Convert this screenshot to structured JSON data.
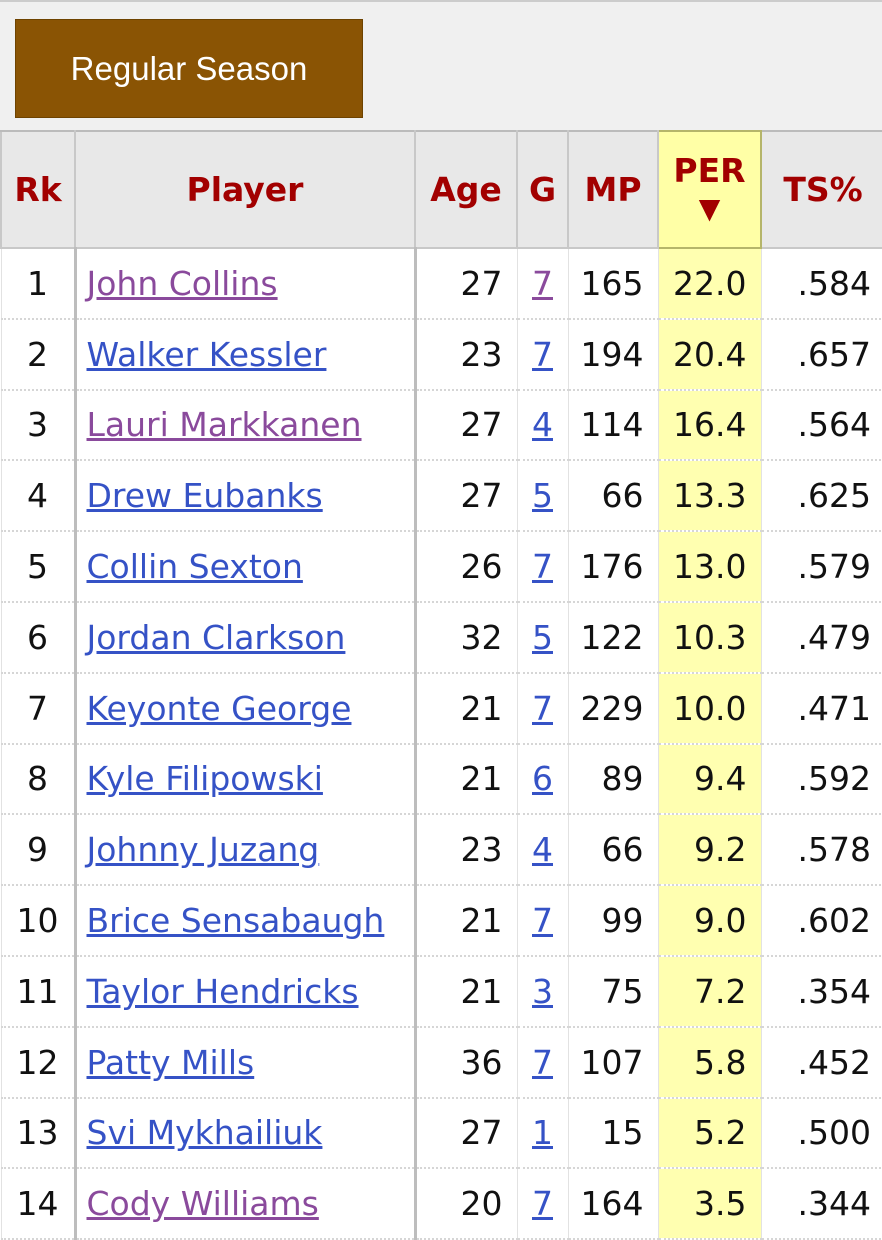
{
  "tab": {
    "label": "Regular Season"
  },
  "table": {
    "headers": [
      "Rk",
      "Player",
      "Age",
      "G",
      "MP",
      "PER",
      "TS%"
    ],
    "rows": [
      [
        "1",
        "John Collins",
        "27",
        "7",
        "165",
        "22.0",
        ".584"
      ],
      [
        "2",
        "Walker Kessler",
        "23",
        "7",
        "194",
        "20.4",
        ".657"
      ],
      [
        "3",
        "Lauri Markkanen",
        "27",
        "4",
        "114",
        "16.4",
        ".564"
      ],
      [
        "4",
        "Drew Eubanks",
        "27",
        "5",
        "66",
        "13.3",
        ".625"
      ],
      [
        "5",
        "Collin Sexton",
        "26",
        "7",
        "176",
        "13.0",
        ".579"
      ],
      [
        "6",
        "Jordan Clarkson",
        "32",
        "5",
        "122",
        "10.3",
        ".479"
      ],
      [
        "7",
        "Keyonte George",
        "21",
        "7",
        "229",
        "10.0",
        ".471"
      ],
      [
        "8",
        "Kyle Filipowski",
        "21",
        "6",
        "89",
        "9.4",
        ".592"
      ],
      [
        "9",
        "Johnny Juzang",
        "23",
        "4",
        "66",
        "9.2",
        ".578"
      ],
      [
        "10",
        "Brice Sensabaugh",
        "21",
        "7",
        "99",
        "9.0",
        ".602"
      ],
      [
        "11",
        "Taylor Hendricks",
        "21",
        "3",
        "75",
        "7.2",
        ".354"
      ],
      [
        "12",
        "Patty Mills",
        "36",
        "7",
        "107",
        "5.8",
        ".452"
      ],
      [
        "13",
        "Svi Mykhailiuk",
        "27",
        "1",
        "15",
        "5.2",
        ".500"
      ],
      [
        "14",
        "Cody Williams",
        "20",
        "7",
        "164",
        "3.5",
        ".344"
      ]
    ],
    "player_link_colors": [
      "#8a4a9c",
      "#3552c6",
      "#8a4a9c",
      "#3552c6",
      "#3552c6",
      "#3552c6",
      "#3552c6",
      "#3552c6",
      "#3552c6",
      "#3552c6",
      "#3552c6",
      "#3552c6",
      "#3552c6",
      "#8a4a9c"
    ],
    "g_link_colors": [
      "#8a4a9c",
      "#3552c6",
      "#3552c6",
      "#3552c6",
      "#3552c6",
      "#3552c6",
      "#3552c6",
      "#3552c6",
      "#3552c6",
      "#3552c6",
      "#3552c6",
      "#3552c6",
      "#3552c6",
      "#3552c6"
    ]
  }
}
